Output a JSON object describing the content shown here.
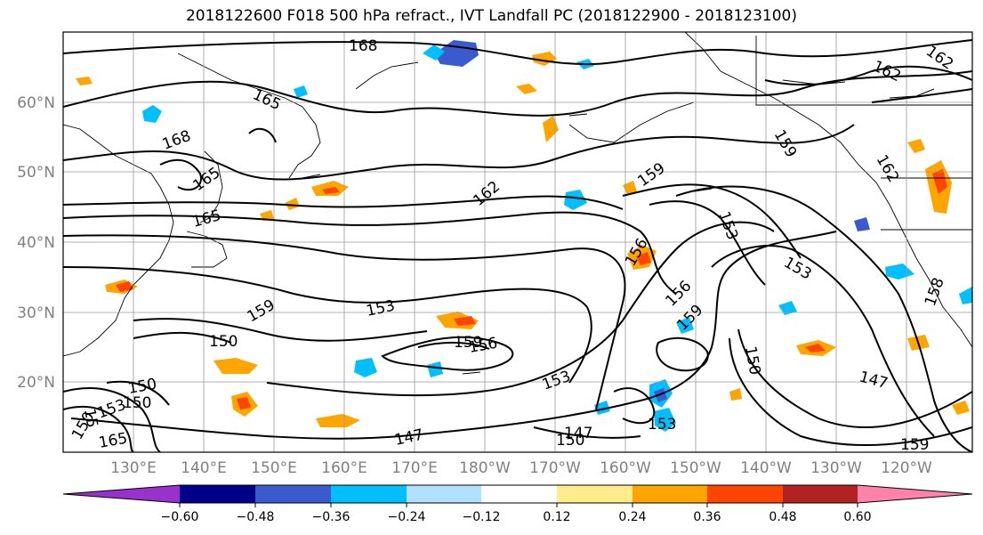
{
  "title": "2018122600 F018 500 hPa refract., IVT Landfall PC (2018122900 - 2018123100)",
  "lat_labels": [
    "60°N",
    "50°N",
    "40°N",
    "30°N",
    "20°N"
  ],
  "lon_labels": [
    "130°E",
    "140°E",
    "150°E",
    "160°E",
    "170°E",
    "180°W",
    "170°W",
    "160°W",
    "150°W",
    "140°W",
    "130°W",
    "120°W"
  ],
  "contour_labels": [
    "168",
    "165",
    "168",
    "165",
    "165",
    "159",
    "162",
    "162",
    "159",
    "153",
    "162",
    "162",
    "159",
    "153",
    "156",
    "156",
    "159",
    "153",
    "150",
    "153",
    "150",
    "159",
    "156",
    "153",
    "150",
    "147",
    "158",
    "147",
    "159",
    "147",
    "150",
    "150",
    "15",
    "165",
    "150",
    "153"
  ],
  "colorbar": {
    "colors": [
      "#9932cc",
      "#00008b",
      "#3a5bcd",
      "#00bfff",
      "#b0e2ff",
      "#ffffff",
      "#ffec8b",
      "#ffa500",
      "#ff4500",
      "#b22222",
      "#ff82ab"
    ],
    "tick_labels": [
      "−0.60",
      "−0.48",
      "−0.36",
      "−0.24",
      "−0.12",
      "0.12",
      "0.24",
      "0.36",
      "0.48",
      "0.60"
    ]
  }
}
